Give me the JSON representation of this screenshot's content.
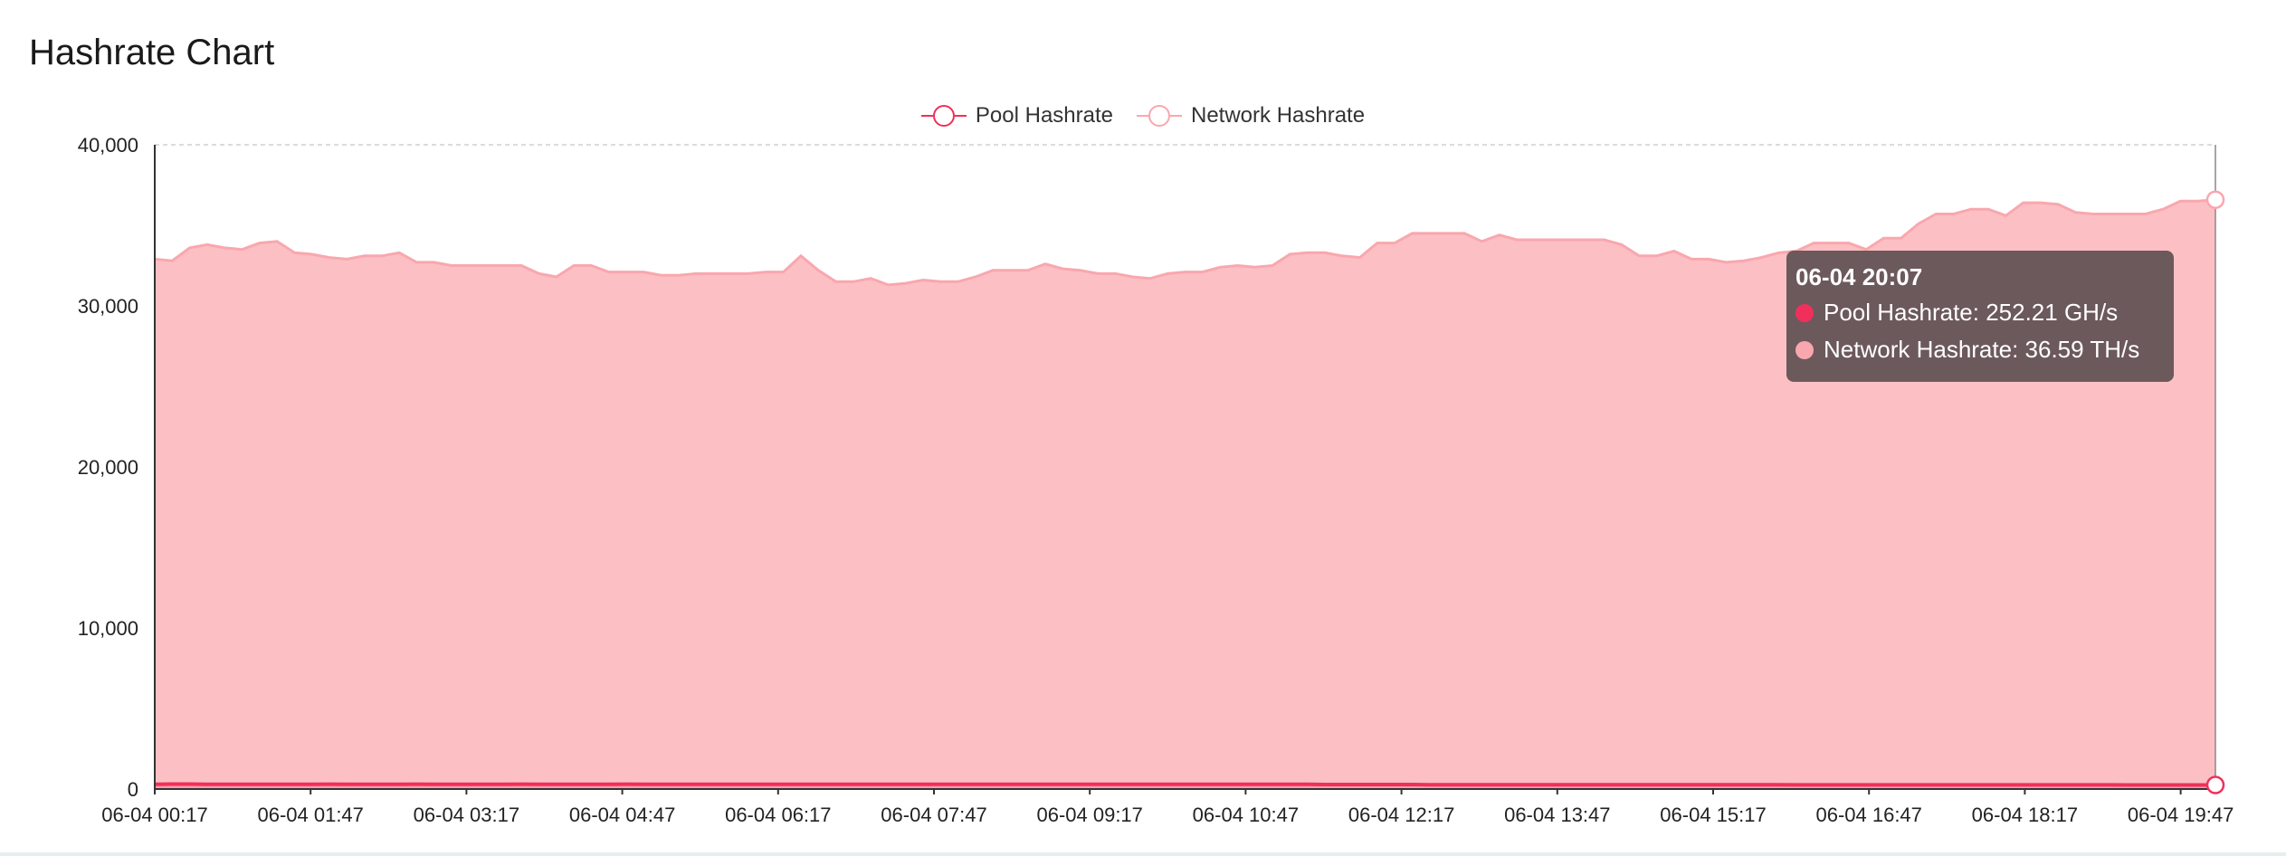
{
  "page": {
    "title": "Hashrate Chart"
  },
  "colors": {
    "pool": "#f0305a",
    "network": "#f9a7ae",
    "network_fill": "#fcc0c4"
  },
  "legend": [
    {
      "label": "Pool Hashrate",
      "color": "#f0305a"
    },
    {
      "label": "Network Hashrate",
      "color": "#f9a7ae"
    }
  ],
  "tooltip": {
    "title": "06-04 20:07",
    "rows": [
      {
        "text": "Pool Hashrate: 252.21 GH/s",
        "color": "#f0305a"
      },
      {
        "text": "Network Hashrate: 36.59 TH/s",
        "color": "#f9a7ae"
      }
    ]
  },
  "chart_data": {
    "type": "area",
    "title": "Hashrate Chart",
    "xlabel": "",
    "ylabel": "",
    "ylim": [
      0,
      40000
    ],
    "yticks": [
      "0",
      "10,000",
      "20,000",
      "30,000",
      "40,000"
    ],
    "x_tick_labels": [
      "06-04 00:17",
      "06-04 01:47",
      "06-04 03:17",
      "06-04 04:47",
      "06-04 06:17",
      "06-04 07:47",
      "06-04 09:17",
      "06-04 10:47",
      "06-04 12:17",
      "06-04 13:47",
      "06-04 15:17",
      "06-04 16:47",
      "06-04 18:17",
      "06-04 19:47"
    ],
    "grid": true,
    "legend_position": "top-center",
    "x_range": [
      "06-04 00:17",
      "06-04 20:07"
    ],
    "series": [
      {
        "name": "Network Hashrate",
        "unit": "TH/s",
        "values": [
          32900,
          32800,
          33600,
          33800,
          33600,
          33500,
          33900,
          34000,
          33300,
          33200,
          33000,
          32900,
          33100,
          33100,
          33300,
          32700,
          32700,
          32500,
          32500,
          32500,
          32500,
          32500,
          32000,
          31800,
          32500,
          32500,
          32100,
          32100,
          32100,
          31900,
          31900,
          32000,
          32000,
          32000,
          32000,
          32100,
          32100,
          33100,
          32200,
          31500,
          31500,
          31700,
          31300,
          31400,
          31600,
          31500,
          31500,
          31800,
          32200,
          32200,
          32200,
          32600,
          32300,
          32200,
          32000,
          32000,
          31800,
          31700,
          32000,
          32100,
          32100,
          32400,
          32500,
          32400,
          32500,
          33200,
          33300,
          33300,
          33100,
          33000,
          33900,
          33900,
          34500,
          34500,
          34500,
          34500,
          34000,
          34400,
          34100,
          34100,
          34100,
          34100,
          34100,
          34100,
          33800,
          33100,
          33100,
          33400,
          32900,
          32900,
          32700,
          32800,
          33000,
          33300,
          33400,
          33900,
          33900,
          33900,
          33500,
          34200,
          34200,
          35100,
          35700,
          35700,
          36000,
          36000,
          35600,
          36400,
          36400,
          36300,
          35800,
          35700,
          35700,
          35700,
          35700,
          36000,
          36500,
          36500,
          36590
        ]
      },
      {
        "name": "Pool Hashrate",
        "unit": "GH/s",
        "values": [
          300,
          310,
          310,
          300,
          300,
          290,
          295,
          300,
          300,
          300,
          305,
          300,
          295,
          300,
          300,
          305,
          300,
          300,
          300,
          300,
          300,
          305,
          300,
          300,
          300,
          300,
          300,
          305,
          300,
          300,
          300,
          300,
          300,
          295,
          300,
          300,
          300,
          300,
          300,
          290,
          290,
          290,
          290,
          290,
          290,
          290,
          290,
          290,
          290,
          290,
          290,
          290,
          290,
          290,
          290,
          290,
          290,
          290,
          290,
          290,
          290,
          290,
          290,
          290,
          290,
          290,
          290,
          280,
          280,
          280,
          280,
          280,
          280,
          270,
          270,
          270,
          270,
          270,
          270,
          270,
          270,
          270,
          270,
          270,
          270,
          270,
          270,
          270,
          270,
          270,
          270,
          270,
          270,
          270,
          260,
          260,
          260,
          260,
          260,
          260,
          260,
          260,
          260,
          260,
          260,
          260,
          260,
          260,
          260,
          260,
          260,
          260,
          260,
          255,
          255,
          255,
          255,
          255,
          252.21
        ]
      }
    ]
  }
}
